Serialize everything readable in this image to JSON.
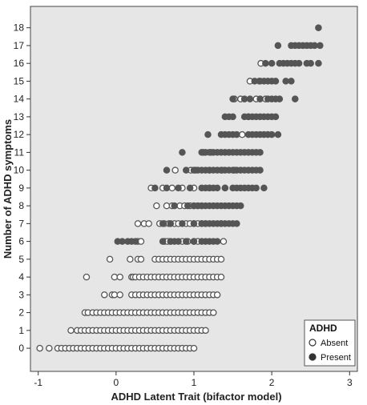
{
  "chart_data": {
    "type": "scatter",
    "xlabel": "ADHD Latent Trait (bifactor model)",
    "ylabel": "Number of ADHD symptoms",
    "xlim": [
      -1.1,
      3.1
    ],
    "ylim": [
      -1.3,
      19.2
    ],
    "x_ticks": [
      -1,
      0,
      1,
      2,
      3
    ],
    "y_ticks": [
      0,
      1,
      2,
      3,
      4,
      5,
      6,
      7,
      8,
      9,
      10,
      11,
      12,
      13,
      14,
      15,
      16,
      17,
      18
    ],
    "grid": false,
    "plot_background": "#e6e6e6",
    "legend": {
      "title": "ADHD",
      "placement": "bottom-right",
      "entries": [
        {
          "label": "Absent",
          "marker": "open-circle"
        },
        {
          "label": "Present",
          "marker": "filled-circle"
        }
      ]
    },
    "series": [
      {
        "name": "Absent",
        "marker": "open-circle",
        "color": "#555555",
        "bands": [
          {
            "y": 0,
            "x": [
              -0.98,
              -0.86,
              -0.75,
              -0.7,
              -0.65,
              -0.6,
              -0.55,
              -0.5,
              -0.45,
              -0.4,
              -0.35,
              -0.3,
              -0.25,
              -0.2,
              -0.15,
              -0.1,
              -0.05,
              0,
              0.05,
              0.1,
              0.15,
              0.2,
              0.25,
              0.3,
              0.35,
              0.4,
              0.45,
              0.5,
              0.55,
              0.6,
              0.65,
              0.7,
              0.75,
              0.8,
              0.85,
              0.9,
              0.95,
              1.0
            ]
          },
          {
            "y": 1,
            "x": [
              -0.58,
              -0.5,
              -0.45,
              -0.4,
              -0.35,
              -0.3,
              -0.25,
              -0.2,
              -0.15,
              -0.1,
              -0.05,
              0,
              0.05,
              0.1,
              0.15,
              0.2,
              0.25,
              0.3,
              0.35,
              0.4,
              0.45,
              0.5,
              0.55,
              0.6,
              0.65,
              0.7,
              0.75,
              0.8,
              0.85,
              0.9,
              0.95,
              1.0,
              1.05,
              1.1,
              1.15
            ]
          },
          {
            "y": 2,
            "x": [
              -0.4,
              -0.36,
              -0.3,
              -0.25,
              -0.2,
              -0.15,
              -0.1,
              -0.05,
              0,
              0.05,
              0.1,
              0.15,
              0.2,
              0.25,
              0.3,
              0.35,
              0.4,
              0.45,
              0.5,
              0.55,
              0.6,
              0.65,
              0.7,
              0.75,
              0.8,
              0.85,
              0.9,
              0.95,
              1.0,
              1.05,
              1.1,
              1.15,
              1.2,
              1.25
            ]
          },
          {
            "y": 3,
            "x": [
              -0.15,
              -0.05,
              -0.02,
              0.05,
              0.2,
              0.25,
              0.3,
              0.35,
              0.4,
              0.45,
              0.5,
              0.55,
              0.6,
              0.65,
              0.7,
              0.75,
              0.8,
              0.85,
              0.9,
              0.95,
              1.0,
              1.05,
              1.1,
              1.15,
              1.2,
              1.25,
              1.3
            ]
          },
          {
            "y": 4,
            "x": [
              -0.38,
              -0.02,
              0.05,
              0.2,
              0.22,
              0.25,
              0.3,
              0.35,
              0.4,
              0.45,
              0.5,
              0.55,
              0.6,
              0.65,
              0.7,
              0.75,
              0.8,
              0.85,
              0.9,
              0.95,
              1.0,
              1.05,
              1.1,
              1.15,
              1.2,
              1.25,
              1.3,
              1.35
            ]
          },
          {
            "y": 5,
            "x": [
              -0.08,
              0.18,
              0.28,
              0.32,
              0.5,
              0.55,
              0.6,
              0.65,
              0.7,
              0.75,
              0.8,
              0.85,
              0.9,
              0.95,
              1.0,
              1.05,
              1.1,
              1.15,
              1.2,
              1.25,
              1.3,
              1.35
            ]
          },
          {
            "y": 6,
            "x": [
              0.28,
              0.32,
              0.62,
              0.66,
              0.7,
              0.85,
              0.92,
              1.0,
              1.05,
              1.38
            ]
          },
          {
            "y": 7,
            "x": [
              0.28,
              0.36,
              0.42,
              0.56,
              0.62,
              0.68,
              0.75,
              0.8,
              0.9,
              0.95,
              1.0,
              1.05,
              1.1,
              1.15,
              1.35
            ]
          },
          {
            "y": 8,
            "x": [
              0.52,
              0.65,
              0.72,
              0.82,
              0.88,
              0.95,
              1.0,
              1.05,
              1.1
            ]
          },
          {
            "y": 9,
            "x": [
              0.45,
              0.6,
              0.72,
              0.85,
              1.0,
              1.2,
              1.4
            ]
          },
          {
            "y": 10,
            "x": [
              0.76,
              0.96,
              1.02,
              1.2,
              1.36,
              1.52
            ]
          },
          {
            "y": 11,
            "x": [
              1.12,
              1.22
            ]
          },
          {
            "y": 12,
            "x": [
              1.62
            ]
          },
          {
            "y": 13,
            "x": [
              1.7
            ]
          },
          {
            "y": 14,
            "x": [
              1.52,
              1.6,
              1.8,
              1.92
            ]
          },
          {
            "y": 15,
            "x": [
              1.72,
              1.84
            ]
          },
          {
            "y": 16,
            "x": [
              1.86
            ]
          }
        ]
      },
      {
        "name": "Present",
        "marker": "filled-circle",
        "color": "#555555",
        "bands": [
          {
            "y": 6,
            "x": [
              0.02,
              0.08,
              0.15,
              0.2,
              0.25,
              0.6,
              0.7,
              0.75,
              0.8,
              0.9,
              1.0,
              1.1,
              1.15,
              1.2,
              1.25,
              1.3
            ]
          },
          {
            "y": 7,
            "x": [
              0.6,
              0.7,
              0.85,
              1.0,
              1.1,
              1.15,
              1.2,
              1.25,
              1.3,
              1.35,
              1.4,
              1.45,
              1.5,
              1.55
            ]
          },
          {
            "y": 8,
            "x": [
              0.75,
              0.92,
              1.0,
              1.05,
              1.1,
              1.15,
              1.2,
              1.25,
              1.3,
              1.35,
              1.4,
              1.45,
              1.5,
              1.55,
              1.6
            ]
          },
          {
            "y": 9,
            "x": [
              0.5,
              0.65,
              0.8,
              0.95,
              1.1,
              1.15,
              1.2,
              1.25,
              1.3,
              1.4,
              1.5,
              1.55,
              1.6,
              1.65,
              1.7,
              1.75,
              1.8,
              1.9
            ]
          },
          {
            "y": 10,
            "x": [
              0.65,
              0.9,
              1.0,
              1.05,
              1.1,
              1.15,
              1.2,
              1.25,
              1.3,
              1.35,
              1.4,
              1.45,
              1.5,
              1.55,
              1.6,
              1.65,
              1.7,
              1.75,
              1.8,
              1.85
            ]
          },
          {
            "y": 11,
            "x": [
              0.85,
              1.1,
              1.15,
              1.2,
              1.25,
              1.3,
              1.35,
              1.4,
              1.45,
              1.5,
              1.55,
              1.6,
              1.65,
              1.7,
              1.75,
              1.8,
              1.85
            ]
          },
          {
            "y": 12,
            "x": [
              1.18,
              1.35,
              1.4,
              1.45,
              1.5,
              1.55,
              1.7,
              1.75,
              1.8,
              1.85,
              1.9,
              1.95,
              2.0,
              2.08
            ]
          },
          {
            "y": 13,
            "x": [
              1.4,
              1.45,
              1.5,
              1.65,
              1.7,
              1.75,
              1.8,
              1.85,
              1.9,
              1.95,
              2.0,
              2.05
            ]
          },
          {
            "y": 14,
            "x": [
              1.5,
              1.65,
              1.72,
              1.85,
              1.95,
              2.0,
              2.05,
              2.1,
              2.3
            ]
          },
          {
            "y": 15,
            "x": [
              1.78,
              1.85,
              1.9,
              1.95,
              2.0,
              2.05,
              2.18,
              2.25
            ]
          },
          {
            "y": 16,
            "x": [
              1.92,
              2.0,
              2.1,
              2.15,
              2.2,
              2.25,
              2.3,
              2.35,
              2.45,
              2.5,
              2.6
            ]
          },
          {
            "y": 17,
            "x": [
              2.08,
              2.25,
              2.3,
              2.35,
              2.4,
              2.45,
              2.5,
              2.55,
              2.62
            ]
          },
          {
            "y": 18,
            "x": [
              2.6
            ]
          }
        ]
      }
    ]
  }
}
